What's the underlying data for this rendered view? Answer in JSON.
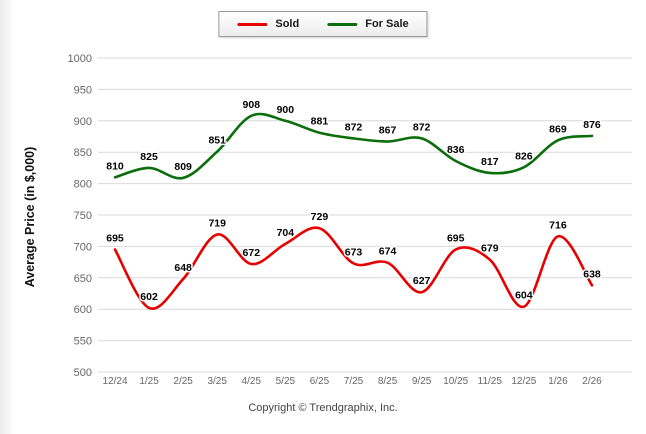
{
  "page": {
    "copyright": "Copyright © Trendgraphix, Inc."
  },
  "legend": {
    "items": [
      {
        "label": "Sold",
        "color": "#e60000"
      },
      {
        "label": "For Sale",
        "color": "#0b6e0b"
      }
    ]
  },
  "chart_data": {
    "type": "line",
    "title": "",
    "ylabel": "Average Price (in $,000)",
    "xlabel": "",
    "ylim": [
      500,
      1000
    ],
    "ytick_step": 50,
    "grid": true,
    "legend_position": "top",
    "categories": [
      "12/24",
      "1/25",
      "2/25",
      "3/25",
      "4/25",
      "5/25",
      "6/25",
      "7/25",
      "8/25",
      "9/25",
      "10/25",
      "11/25",
      "12/25",
      "1/26",
      "2/26"
    ],
    "series": [
      {
        "name": "Sold",
        "color": "#e60000",
        "values": [
          695,
          602,
          648,
          719,
          672,
          704,
          729,
          673,
          674,
          627,
          695,
          679,
          604,
          716,
          638
        ]
      },
      {
        "name": "For Sale",
        "color": "#0b6e0b",
        "values": [
          810,
          825,
          809,
          851,
          908,
          900,
          881,
          872,
          867,
          872,
          836,
          817,
          826,
          869,
          876
        ]
      }
    ]
  }
}
